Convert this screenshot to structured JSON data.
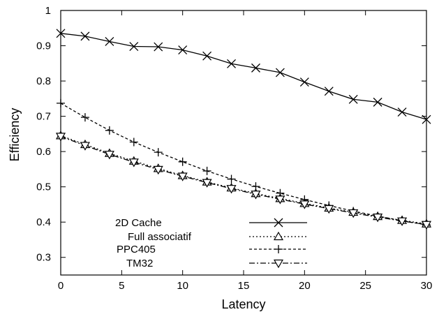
{
  "chart_data": {
    "type": "line",
    "xlabel": "Latency",
    "ylabel": "Efficiency",
    "xlim": [
      0,
      30
    ],
    "ylim": [
      0.25,
      1
    ],
    "xticks": [
      "0",
      "5",
      "10",
      "15",
      "20",
      "25",
      "30"
    ],
    "yticks": [
      "0.3",
      "0.4",
      "0.5",
      "0.6",
      "0.7",
      "0.8",
      "0.9",
      "1"
    ],
    "grid": false,
    "legend_position": "bottom-center",
    "series": [
      {
        "name": "2D Cache",
        "marker": "x",
        "dash": "solid",
        "x": [
          0,
          2,
          4,
          6,
          8,
          10,
          12,
          14,
          16,
          18,
          20,
          22,
          24,
          26,
          28,
          30
        ],
        "values": [
          0.935,
          0.927,
          0.912,
          0.898,
          0.897,
          0.888,
          0.871,
          0.849,
          0.837,
          0.824,
          0.797,
          0.771,
          0.748,
          0.74,
          0.712,
          0.691
        ]
      },
      {
        "name": "Full associatif",
        "marker": "triangle-up",
        "dash": "dotted",
        "x": [
          0,
          2,
          4,
          6,
          8,
          10,
          12,
          14,
          16,
          18,
          20,
          22,
          24,
          26,
          28,
          30
        ],
        "values": [
          0.645,
          0.62,
          0.595,
          0.573,
          0.552,
          0.532,
          0.514,
          0.497,
          0.481,
          0.467,
          0.453,
          0.44,
          0.428,
          0.416,
          0.405,
          0.395
        ]
      },
      {
        "name": "PPC405",
        "marker": "plus",
        "dash": "dashed",
        "x": [
          0,
          2,
          4,
          6,
          8,
          10,
          12,
          14,
          16,
          18,
          20,
          22,
          24,
          26,
          28,
          30
        ],
        "values": [
          0.737,
          0.697,
          0.66,
          0.627,
          0.598,
          0.571,
          0.545,
          0.522,
          0.501,
          0.482,
          0.464,
          0.447,
          0.431,
          0.417,
          0.404,
          0.392
        ]
      },
      {
        "name": "TM32",
        "marker": "triangle-down",
        "dash": "dashdot",
        "x": [
          0,
          2,
          4,
          6,
          8,
          10,
          12,
          14,
          16,
          18,
          20,
          22,
          24,
          26,
          28,
          30
        ],
        "values": [
          0.643,
          0.617,
          0.592,
          0.57,
          0.549,
          0.53,
          0.512,
          0.495,
          0.479,
          0.465,
          0.451,
          0.438,
          0.426,
          0.414,
          0.403,
          0.393
        ]
      }
    ]
  }
}
